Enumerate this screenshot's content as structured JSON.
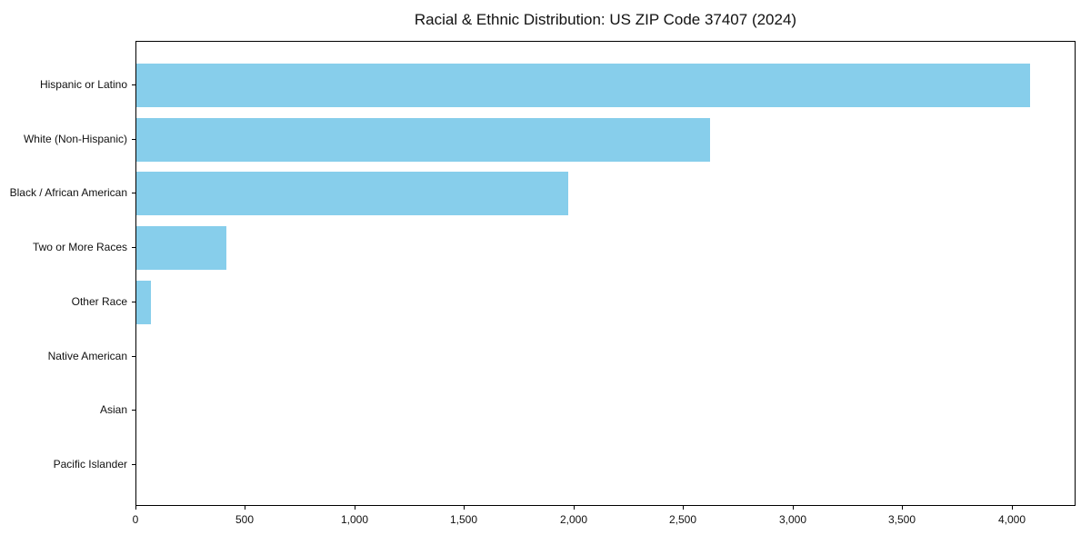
{
  "chart_data": {
    "type": "bar",
    "orientation": "horizontal",
    "title": "Racial & Ethnic Distribution: US ZIP Code 37407 (2024)",
    "categories": [
      "Hispanic or Latino",
      "White (Non-Hispanic)",
      "Black / African American",
      "Two or More Races",
      "Other Race",
      "Native American",
      "Asian",
      "Pacific Islander"
    ],
    "values": [
      4080,
      2620,
      1970,
      410,
      65,
      0,
      0,
      0
    ],
    "xlabel": "",
    "ylabel": "",
    "xlim": [
      0,
      4284
    ],
    "xticks": [
      0,
      500,
      1000,
      1500,
      2000,
      2500,
      3000,
      3500,
      4000
    ],
    "xtick_labels": [
      "0",
      "500",
      "1,000",
      "1,500",
      "2,000",
      "2,500",
      "3,000",
      "3,500",
      "4,000"
    ],
    "bar_color": "#87CEEB",
    "spine_color": "#000000",
    "text_color": "#111111",
    "background": "#ffffff",
    "grid": false,
    "legend": "none"
  }
}
